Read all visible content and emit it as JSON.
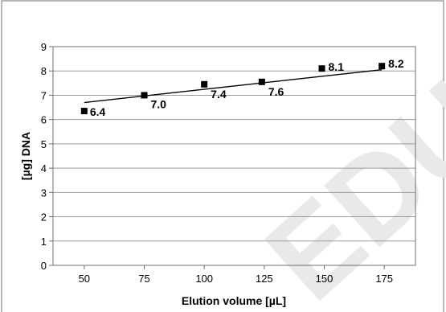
{
  "chart_data": {
    "type": "scatter",
    "xlabel": "Elution volume [µL]",
    "ylabel": "[µg] DNA",
    "xlim": [
      37,
      188
    ],
    "ylim": [
      0,
      9
    ],
    "x_ticks": [
      50,
      75,
      100,
      125,
      150,
      175
    ],
    "y_ticks": [
      0,
      1,
      2,
      3,
      4,
      5,
      6,
      7,
      8,
      9
    ],
    "grid": "horizontal",
    "legend": "none",
    "points": [
      {
        "x": 50,
        "y": 6.35,
        "label": "6.4"
      },
      {
        "x": 75,
        "y": 7.0,
        "label": "7.0"
      },
      {
        "x": 100,
        "y": 7.45,
        "label": "7.4"
      },
      {
        "x": 124,
        "y": 7.55,
        "label": "7.6"
      },
      {
        "x": 149,
        "y": 8.1,
        "label": "8.1"
      },
      {
        "x": 174,
        "y": 8.2,
        "label": "8.2"
      }
    ],
    "trendline": {
      "type": "linear",
      "x": [
        50,
        174
      ],
      "y": [
        6.7,
        8.05
      ]
    },
    "watermark": "EDU",
    "colors": {
      "marker": "#000000",
      "line": "#000000",
      "grid": "#9a9a9a",
      "frame": "#6f6f6f",
      "watermark": "#e9e9e9"
    }
  }
}
